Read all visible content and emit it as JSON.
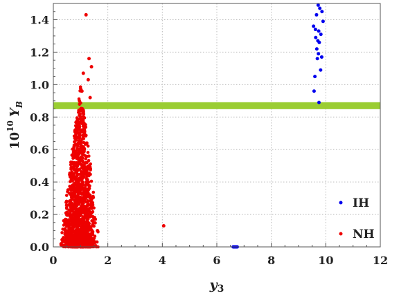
{
  "chart_data": {
    "type": "scatter",
    "title": "",
    "xlabel": "y3",
    "ylabel": "10^10 Y_B",
    "xlim": [
      0,
      12
    ],
    "ylim": [
      0,
      1.5
    ],
    "x_ticks": [
      "0",
      "2",
      "4",
      "6",
      "8",
      "10",
      "12"
    ],
    "y_ticks": [
      "0.0",
      "0.2",
      "0.4",
      "0.6",
      "0.8",
      "1.0",
      "1.2",
      "1.4"
    ],
    "grid": true,
    "legend_position": "bottom-right",
    "observed_band": {
      "y": 0.87,
      "color": "#9acd32"
    },
    "series": [
      {
        "name": "IH",
        "color": "#0000ee",
        "x": [
          9.72,
          9.78,
          9.86,
          9.66,
          9.9,
          9.55,
          9.62,
          9.74,
          9.82,
          9.63,
          9.71,
          9.76,
          9.67,
          9.73,
          9.85,
          9.69,
          9.81,
          9.6,
          9.57,
          9.75,
          6.6,
          6.63,
          6.66,
          6.69,
          6.72,
          6.75
        ],
        "y": [
          1.49,
          1.47,
          1.45,
          1.43,
          1.39,
          1.36,
          1.34,
          1.33,
          1.31,
          1.29,
          1.27,
          1.26,
          1.22,
          1.19,
          1.17,
          1.16,
          1.09,
          1.05,
          0.96,
          0.89,
          0.0,
          0.0,
          0.0,
          0.0,
          0.0,
          0.0
        ]
      },
      {
        "name": "NH",
        "color": "#ee0000",
        "x": [
          1.2,
          1.31,
          1.4,
          1.1,
          1.28,
          1.05,
          1.35,
          4.05,
          1.62,
          0.35,
          0.5,
          0.65,
          0.85,
          1.15,
          1.4,
          1.55,
          0.95,
          0.75
        ],
        "y": [
          1.43,
          1.16,
          1.11,
          1.07,
          1.03,
          0.96,
          0.92,
          0.13,
          0.1,
          0.05,
          0.16,
          0.27,
          0.38,
          0.45,
          0.25,
          0.03,
          0.67,
          0.05
        ],
        "dense_cloud": {
          "x_range": [
            0.2,
            1.7
          ],
          "x_peak": 1.0,
          "y_max": 1.0,
          "count": 1600
        }
      }
    ]
  }
}
